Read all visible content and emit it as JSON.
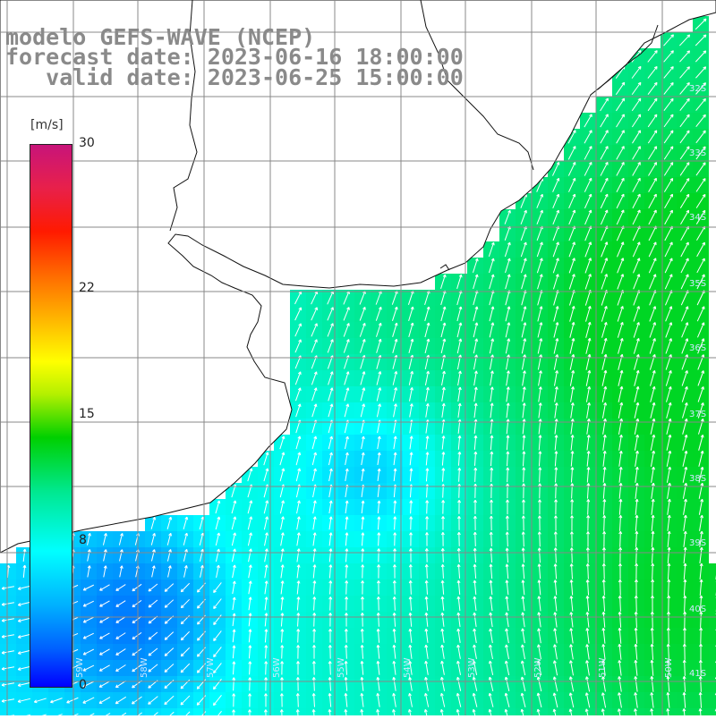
{
  "title": {
    "line1": "modelo GEFS-WAVE (NCEP)",
    "line2": "forecast date: 2023-06-16 18:00:00",
    "line3": "   valid date: 2023-06-25 15:00:00"
  },
  "colorbar": {
    "unit": "[m/s]",
    "ticks": [
      {
        "label": "30",
        "value": 30
      },
      {
        "label": "22",
        "value": 22
      },
      {
        "label": "15",
        "value": 15
      },
      {
        "label": "8",
        "value": 8
      },
      {
        "label": "0",
        "value": 0
      }
    ],
    "colors": [
      "#0000ff",
      "#0060ff",
      "#00b0ff",
      "#00ffff",
      "#00e890",
      "#00d000",
      "#ffff00",
      "#ff6a00",
      "#ff1a00",
      "#c8147a"
    ]
  },
  "map": {
    "variable": "wind speed and direction",
    "lat_labels": [
      "32S",
      "33S",
      "34S",
      "35S",
      "36S",
      "37S",
      "38S",
      "39S",
      "40S",
      "41S"
    ],
    "lon_labels": [
      "59W",
      "58W",
      "57W",
      "56W",
      "55W",
      "54W",
      "53W",
      "52W",
      "51W",
      "50W"
    ],
    "land_color": "#ffffff",
    "grid_color": "#888888",
    "arrow_color": "#ffffff"
  }
}
